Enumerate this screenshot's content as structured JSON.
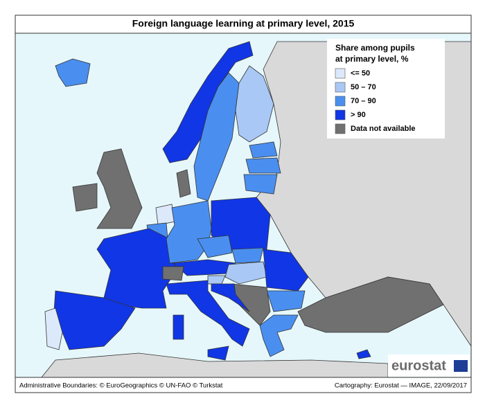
{
  "header": {
    "title": "Foreign language learning at primary level, 2015"
  },
  "legend": {
    "title_lines": [
      "Share among pupils",
      "at primary level, %"
    ],
    "items": [
      {
        "label": "<= 50",
        "color": "#dce9fb"
      },
      {
        "label": "50 – 70",
        "color": "#a9c8f5"
      },
      {
        "label": "70 – 90",
        "color": "#4a8ff0"
      },
      {
        "label": "> 90",
        "color": "#1136e6"
      },
      {
        "label": "Data not available",
        "color": "#707070"
      }
    ]
  },
  "logo": "eurostat",
  "footer": {
    "left": "Administrative Boundaries: © EuroGeographics © UN-FAO © Turkstat",
    "right": "Cartography: Eurostat — IMAGE, 22/09/2017"
  }
}
